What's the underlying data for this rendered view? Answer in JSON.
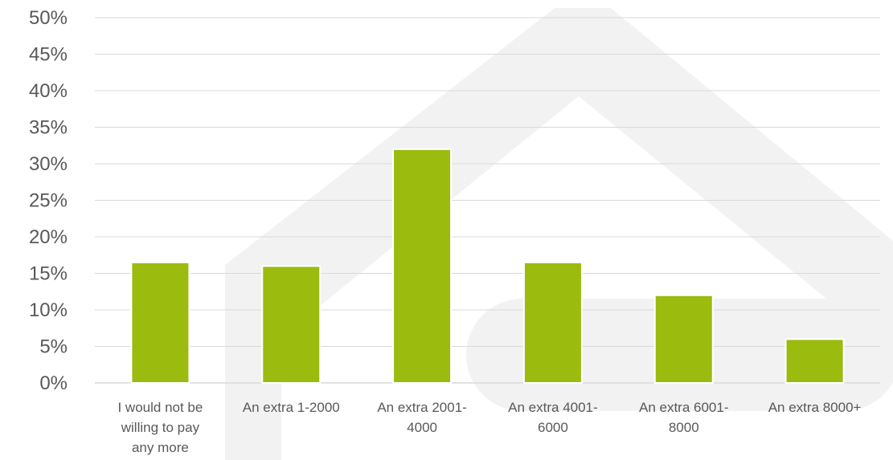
{
  "chart_data": {
    "type": "bar",
    "categories": [
      [
        "I would not be",
        "willing to pay",
        "any more"
      ],
      [
        "An extra 1-2000"
      ],
      [
        "An extra 2001-",
        "4000"
      ],
      [
        "An extra 4001-",
        "6000"
      ],
      [
        "An extra 6001-",
        "8000"
      ],
      [
        "An extra 8000+"
      ]
    ],
    "values": [
      16.5,
      16,
      32,
      16.5,
      12,
      6
    ],
    "value_format": "percent",
    "ylim": [
      0,
      50
    ],
    "yticks": [
      "0%",
      "5%",
      "10%",
      "15%",
      "20%",
      "25%",
      "30%",
      "35%",
      "40%",
      "45%",
      "50%"
    ],
    "grid": true,
    "title": "",
    "xlabel": "",
    "ylabel": "",
    "legend": "none",
    "colors": {
      "bar": "#9bbb0e",
      "grid": "#d9d9d9",
      "axis": "#d9d9d9",
      "text": "#595959",
      "watermark": "#f2f2f2"
    }
  }
}
